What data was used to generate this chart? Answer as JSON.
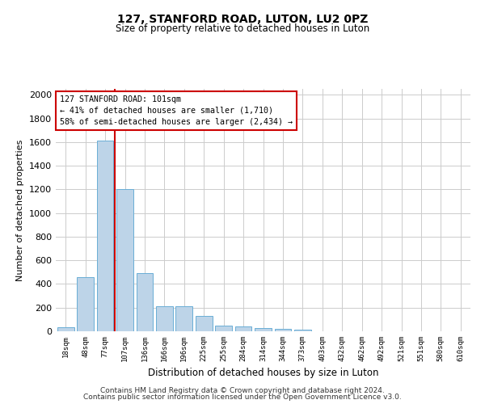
{
  "title": "127, STANFORD ROAD, LUTON, LU2 0PZ",
  "subtitle": "Size of property relative to detached houses in Luton",
  "xlabel": "Distribution of detached houses by size in Luton",
  "ylabel": "Number of detached properties",
  "categories": [
    "18sqm",
    "48sqm",
    "77sqm",
    "107sqm",
    "136sqm",
    "166sqm",
    "196sqm",
    "225sqm",
    "255sqm",
    "284sqm",
    "314sqm",
    "344sqm",
    "373sqm",
    "403sqm",
    "432sqm",
    "462sqm",
    "492sqm",
    "521sqm",
    "551sqm",
    "580sqm",
    "610sqm"
  ],
  "values": [
    35,
    460,
    1610,
    1200,
    490,
    215,
    215,
    130,
    50,
    40,
    25,
    20,
    12,
    0,
    0,
    0,
    0,
    0,
    0,
    0,
    0
  ],
  "bar_color": "#bdd4e8",
  "bar_edge_color": "#6aaed6",
  "grid_color": "#cccccc",
  "vline_color": "#cc0000",
  "vline_x_index": 2,
  "annotation_line1": "127 STANFORD ROAD: 101sqm",
  "annotation_line2": "← 41% of detached houses are smaller (1,710)",
  "annotation_line3": "58% of semi-detached houses are larger (2,434) →",
  "annotation_box_color": "#cc0000",
  "ylim": [
    0,
    2050
  ],
  "yticks": [
    0,
    200,
    400,
    600,
    800,
    1000,
    1200,
    1400,
    1600,
    1800,
    2000
  ],
  "footer_line1": "Contains HM Land Registry data © Crown copyright and database right 2024.",
  "footer_line2": "Contains public sector information licensed under the Open Government Licence v3.0.",
  "bg_color": "#ffffff"
}
